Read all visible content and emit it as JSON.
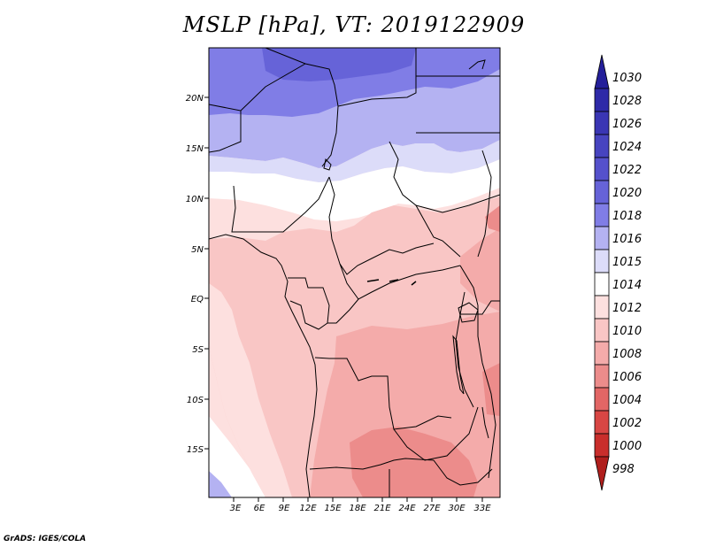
{
  "title": "MSLP [hPa], VT: 2019122909",
  "footer": "GrADS: IGES/COLA",
  "map": {
    "lon_range": [
      0,
      35
    ],
    "lat_range": [
      -20,
      24.5
    ],
    "lon_ticks": [
      "3E",
      "6E",
      "9E",
      "12E",
      "15E",
      "18E",
      "21E",
      "24E",
      "27E",
      "30E",
      "33E"
    ],
    "lat_ticks": [
      "20N",
      "15N",
      "10N",
      "5N",
      "EQ",
      "5S",
      "10S",
      "15S"
    ]
  },
  "colorbar": {
    "levels": [
      "1030",
      "1028",
      "1026",
      "1024",
      "1022",
      "1020",
      "1018",
      "1016",
      "1015",
      "1014",
      "1012",
      "1010",
      "1008",
      "1006",
      "1004",
      "1002",
      "1000",
      "998"
    ],
    "colors": [
      "#241f9a",
      "#2e2aa8",
      "#3a36b4",
      "#4744c0",
      "#5551cc",
      "#6663d8",
      "#807de6",
      "#b4b2f2",
      "#dcdcf9",
      "#ffffff",
      "#fde0df",
      "#f9c6c5",
      "#f4abaa",
      "#ec8c8b",
      "#e26665",
      "#d84644",
      "#c92e2c",
      "#b01f1d"
    ]
  }
}
